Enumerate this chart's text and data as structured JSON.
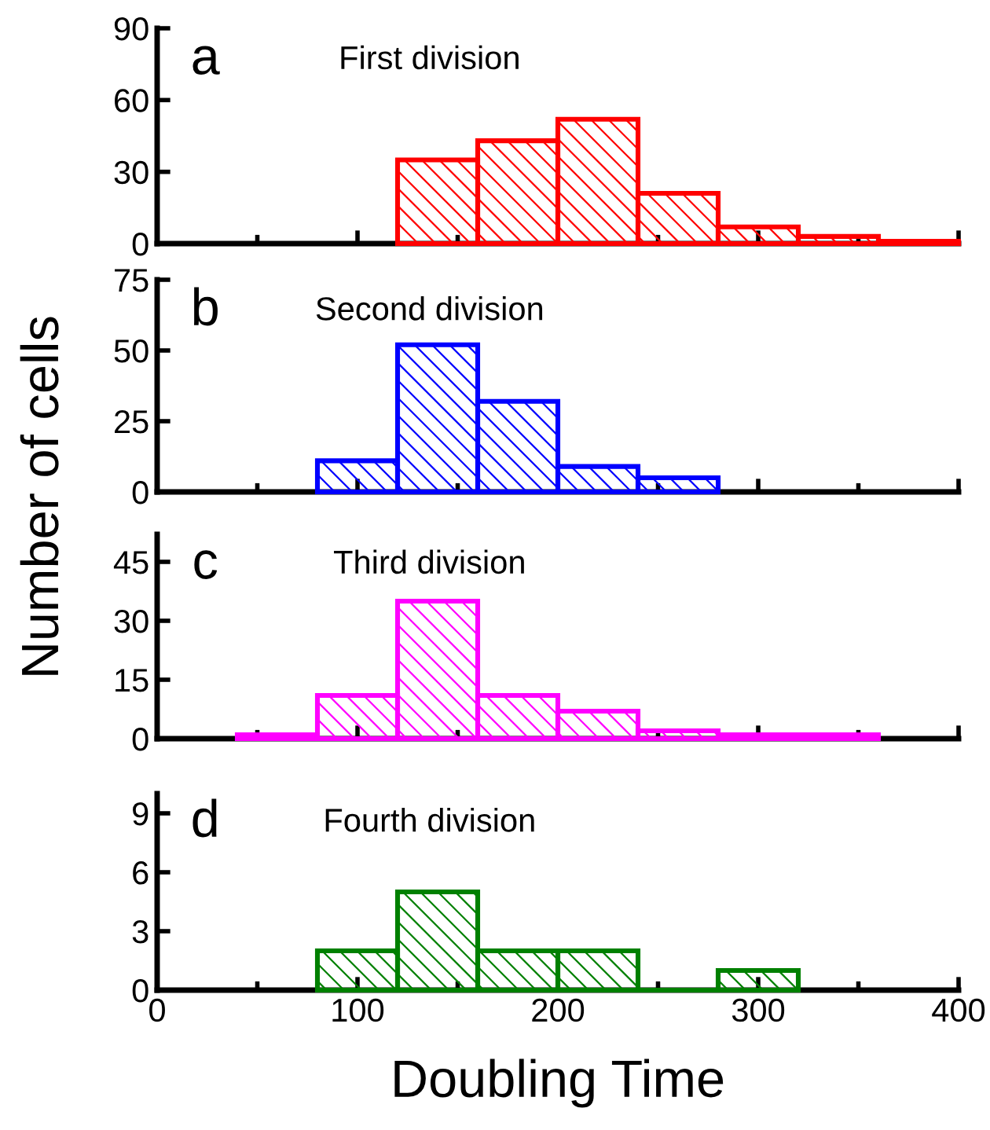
{
  "chart_data": [
    {
      "type": "histogram",
      "title": "First division",
      "ylabel": "Number of cells",
      "annotations": [
        "a"
      ],
      "bins": [
        120,
        160,
        200,
        240,
        280,
        320,
        360,
        400
      ],
      "values": [
        35,
        43,
        52,
        21,
        7,
        3,
        1
      ],
      "color": "#ff0000",
      "xlim": [
        0,
        400
      ],
      "xticks": [
        0,
        {
          "value": 50,
          "label": null
        },
        100,
        {
          "value": 150,
          "label": null
        },
        200,
        {
          "value": 250,
          "label": null
        },
        300,
        {
          "value": 350,
          "label": null
        },
        400
      ],
      "ylim": [
        0,
        90
      ],
      "yticks": [
        0,
        30,
        60,
        90
      ],
      "tick_labels": "y"
    },
    {
      "type": "histogram",
      "title": "Second division",
      "annotations": [
        "b"
      ],
      "bins": [
        80,
        120,
        160,
        200,
        240,
        280
      ],
      "values": [
        11,
        52,
        32,
        9,
        5
      ],
      "color": "#0000ff",
      "xlim": [
        0,
        400
      ],
      "xticks": [
        0,
        {
          "value": 50,
          "label": null
        },
        100,
        {
          "value": 150,
          "label": null
        },
        200,
        {
          "value": 250,
          "label": null
        },
        300,
        {
          "value": 350,
          "label": null
        },
        400
      ],
      "ylim": [
        0,
        75
      ],
      "yticks": [
        0,
        25,
        50,
        75
      ],
      "tick_labels": "y"
    },
    {
      "type": "histogram",
      "title": "Third division",
      "annotations": [
        "c"
      ],
      "bins": [
        40,
        80,
        120,
        160,
        200,
        240,
        280,
        320,
        360
      ],
      "values": [
        1,
        11,
        35,
        11,
        7,
        2,
        1,
        1
      ],
      "color": "#ff00ff",
      "xlim": [
        0,
        400
      ],
      "xticks": [
        0,
        {
          "value": 50,
          "label": null
        },
        100,
        {
          "value": 150,
          "label": null
        },
        200,
        {
          "value": 250,
          "label": null
        },
        300,
        {
          "value": 350,
          "label": null
        },
        400
      ],
      "ylim": [
        0,
        52
      ],
      "yticks": [
        0,
        15,
        30,
        45
      ],
      "tick_labels": "y"
    },
    {
      "type": "histogram",
      "title": "Fourth division",
      "xlabel": "Doubling Time",
      "annotations": [
        "d"
      ],
      "bins": [
        80,
        120,
        160,
        200,
        240,
        280,
        320
      ],
      "values": [
        2,
        5,
        2,
        2,
        0,
        1
      ],
      "color": "#008000",
      "xlim": [
        0,
        400
      ],
      "xticks": [
        0,
        {
          "value": 50,
          "label": null
        },
        100,
        {
          "value": 150,
          "label": null
        },
        200,
        {
          "value": 250,
          "label": null
        },
        300,
        {
          "value": 350,
          "label": null
        },
        400
      ],
      "ylim": [
        0,
        10
      ],
      "yticks": [
        0,
        3,
        6,
        9
      ]
    }
  ]
}
